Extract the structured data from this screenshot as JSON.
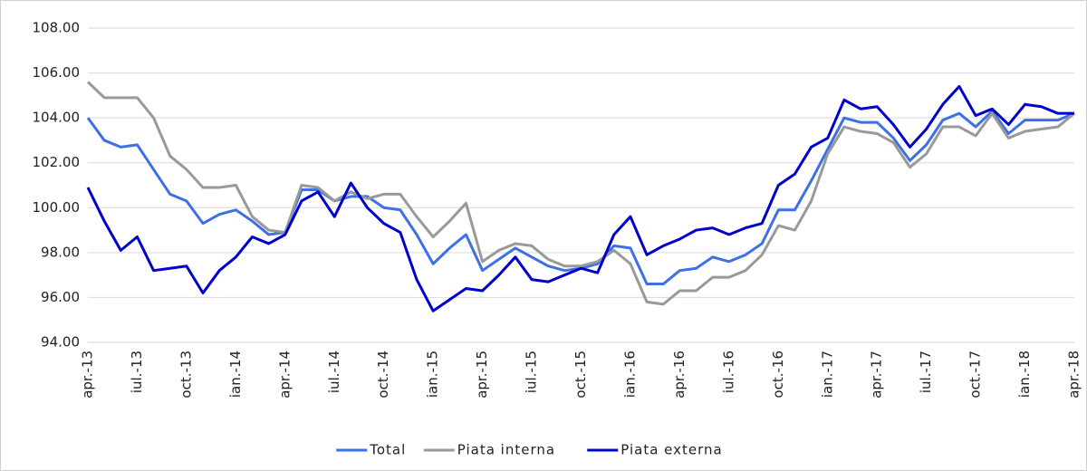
{
  "chart_data": {
    "type": "line",
    "categories": [
      "apr.-13",
      null,
      null,
      "iul.-13",
      null,
      null,
      "oct.-13",
      null,
      null,
      "ian.-14",
      null,
      null,
      "apr.-14",
      null,
      null,
      "iul.-14",
      null,
      null,
      "oct.-14",
      null,
      null,
      "ian.-15",
      null,
      null,
      "apr.-15",
      null,
      null,
      "iul.-15",
      null,
      null,
      "oct.-15",
      null,
      null,
      "ian.-16",
      null,
      null,
      "apr.-16",
      null,
      null,
      "iul.-16",
      null,
      null,
      "oct.-16",
      null,
      null,
      "ian.-17",
      null,
      null,
      "apr.-17",
      null,
      null,
      "iul.-17",
      null,
      null,
      "oct.-17",
      null,
      null,
      "ian.-18",
      null,
      null,
      "apr.-18"
    ],
    "series": [
      {
        "name": "Total",
        "color": "#3d6fe6",
        "values": [
          104.0,
          103.0,
          102.7,
          102.8,
          101.7,
          100.6,
          100.3,
          99.3,
          99.7,
          99.9,
          99.4,
          98.8,
          98.9,
          100.8,
          100.8,
          100.3,
          100.5,
          100.5,
          100.0,
          99.9,
          98.8,
          97.5,
          98.2,
          98.8,
          97.2,
          97.7,
          98.2,
          97.8,
          97.4,
          97.2,
          97.3,
          97.5,
          98.3,
          98.2,
          96.6,
          96.6,
          97.2,
          97.3,
          97.8,
          97.6,
          97.9,
          98.4,
          99.9,
          99.9,
          101.2,
          102.6,
          104.0,
          103.8,
          103.8,
          103.1,
          102.1,
          102.8,
          103.9,
          104.2,
          103.6,
          104.3,
          103.3,
          103.9,
          103.9,
          103.9,
          104.2
        ]
      },
      {
        "name": "Piata interna",
        "color": "#999999",
        "values": [
          105.6,
          104.9,
          104.9,
          104.9,
          104.0,
          102.3,
          101.7,
          100.9,
          100.9,
          101.0,
          99.6,
          99.0,
          98.9,
          101.0,
          100.9,
          100.3,
          100.7,
          100.4,
          100.6,
          100.6,
          99.6,
          98.7,
          99.4,
          100.2,
          97.6,
          98.1,
          98.4,
          98.3,
          97.7,
          97.4,
          97.4,
          97.6,
          98.1,
          97.5,
          95.8,
          95.7,
          96.3,
          96.3,
          96.9,
          96.9,
          97.2,
          97.9,
          99.2,
          99.0,
          100.3,
          102.4,
          103.6,
          103.4,
          103.3,
          102.9,
          101.8,
          102.4,
          103.6,
          103.6,
          103.2,
          104.2,
          103.1,
          103.4,
          103.5,
          103.6,
          104.2
        ]
      },
      {
        "name": "Piata externa",
        "color": "#0000cc",
        "values": [
          100.9,
          99.4,
          98.1,
          98.7,
          97.2,
          97.3,
          97.4,
          96.2,
          97.2,
          97.8,
          98.7,
          98.4,
          98.8,
          100.3,
          100.7,
          99.6,
          101.1,
          100.0,
          99.3,
          98.9,
          96.8,
          95.4,
          95.9,
          96.4,
          96.3,
          97.0,
          97.8,
          96.8,
          96.7,
          97.0,
          97.3,
          97.1,
          98.8,
          99.6,
          97.9,
          98.3,
          98.6,
          99.0,
          99.1,
          98.8,
          99.1,
          99.3,
          101.0,
          101.5,
          102.7,
          103.1,
          104.8,
          104.4,
          104.5,
          103.7,
          102.7,
          103.5,
          104.6,
          105.4,
          104.1,
          104.4,
          103.7,
          104.6,
          104.5,
          104.2,
          104.2
        ]
      }
    ],
    "ylim": [
      94,
      108
    ],
    "yticks": [
      {
        "value": 94,
        "label": "94.00"
      },
      {
        "value": 96,
        "label": "96.00"
      },
      {
        "value": 98,
        "label": "98.00"
      },
      {
        "value": 100,
        "label": "100.00"
      },
      {
        "value": 102,
        "label": "102.00"
      },
      {
        "value": 104,
        "label": "104.00"
      },
      {
        "value": 106,
        "label": "106.00"
      },
      {
        "value": 108,
        "label": "108.00"
      }
    ],
    "grid": true,
    "legend": "bottom"
  }
}
